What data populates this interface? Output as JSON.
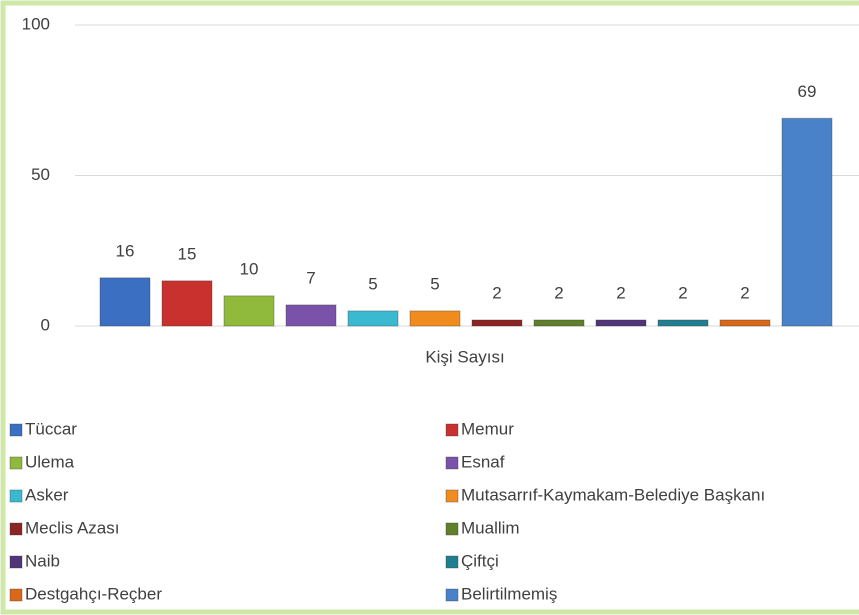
{
  "chart_data": {
    "type": "bar",
    "categories": [
      "Kişi Sayısı"
    ],
    "ylim": [
      0,
      100
    ],
    "yticks": [
      0,
      50,
      100
    ],
    "grid": true,
    "series": [
      {
        "name": "Tüccar",
        "color": "#3b6fc2",
        "values": [
          16
        ]
      },
      {
        "name": "Memur",
        "color": "#c8312e",
        "values": [
          15
        ]
      },
      {
        "name": "Ulema",
        "color": "#8fba3c",
        "values": [
          10
        ]
      },
      {
        "name": "Esnaf",
        "color": "#7b52a9",
        "values": [
          7
        ]
      },
      {
        "name": "Asker",
        "color": "#3bb9d1",
        "values": [
          5
        ]
      },
      {
        "name": "Mutasarrıf-Kaymakam-Belediye Başkanı",
        "color": "#f28b1e",
        "values": [
          5
        ]
      },
      {
        "name": "Meclis Azası",
        "color": "#8c2424",
        "values": [
          2
        ]
      },
      {
        "name": "Muallim",
        "color": "#607f2b",
        "values": [
          2
        ]
      },
      {
        "name": "Naib",
        "color": "#503579",
        "values": [
          2
        ]
      },
      {
        "name": "Çiftçi",
        "color": "#217e90",
        "values": [
          2
        ]
      },
      {
        "name": "Destgahçı-Reçber",
        "color": "#d9681b",
        "values": [
          2
        ]
      },
      {
        "name": "Belirtilmemiş",
        "color": "#4a82c9",
        "values": [
          69
        ]
      }
    ]
  }
}
